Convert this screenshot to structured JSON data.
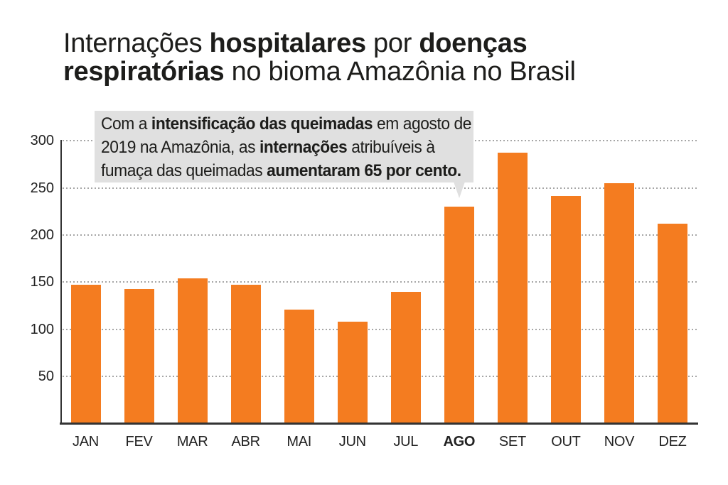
{
  "title": {
    "line1": [
      {
        "t": "Internações ",
        "b": false
      },
      {
        "t": "hospitalares",
        "b": true
      },
      {
        "t": " por ",
        "b": false
      },
      {
        "t": "doenças",
        "b": true
      }
    ],
    "line2": [
      {
        "t": "respiratórias",
        "b": true
      },
      {
        "t": " no bioma Amazônia no Brasil",
        "b": false
      }
    ]
  },
  "annotation": {
    "lines": [
      [
        {
          "t": "Com a ",
          "b": false
        },
        {
          "t": "intensificação das queimadas",
          "b": true
        },
        {
          "t": " em agosto de",
          "b": false
        }
      ],
      [
        {
          "t": "2019 na Amazônia, as ",
          "b": false
        },
        {
          "t": "internações",
          "b": true
        },
        {
          "t": " atribuíveis à",
          "b": false
        }
      ],
      [
        {
          "t": "fumaça das queimadas ",
          "b": false
        },
        {
          "t": "aumentaram 65 por cento.",
          "b": true
        }
      ]
    ]
  },
  "chart_data": {
    "type": "bar",
    "title": "Internações hospitalares por doenças respiratórias no bioma Amazônia no Brasil",
    "categories": [
      "JAN",
      "FEV",
      "MAR",
      "ABR",
      "MAI",
      "JUN",
      "JUL",
      "AGO",
      "SET",
      "OUT",
      "NOV",
      "DEZ"
    ],
    "values": [
      147,
      143,
      154,
      147,
      121,
      108,
      140,
      230,
      287,
      241,
      255,
      212
    ],
    "emphasized_category": "AGO",
    "annotation": "Com a intensificação das queimadas em agosto de 2019 na Amazônia, as internações atribuíveis à fumaça das queimadas aumentaram 65 por cento.",
    "xlabel": "",
    "ylabel": "",
    "yticks": [
      50,
      100,
      150,
      200,
      250,
      300
    ],
    "ylim": [
      0,
      300
    ],
    "grid": "dotted-horizontal",
    "legend": "none",
    "bar_color": "#f47c20"
  },
  "colors": {
    "background": "#ffffff",
    "text": "#1d1d1b",
    "bar": "#f47c20",
    "annotation_background": "#e0e0e0",
    "gridline": "#a6a6a6",
    "axis": "#333333"
  }
}
